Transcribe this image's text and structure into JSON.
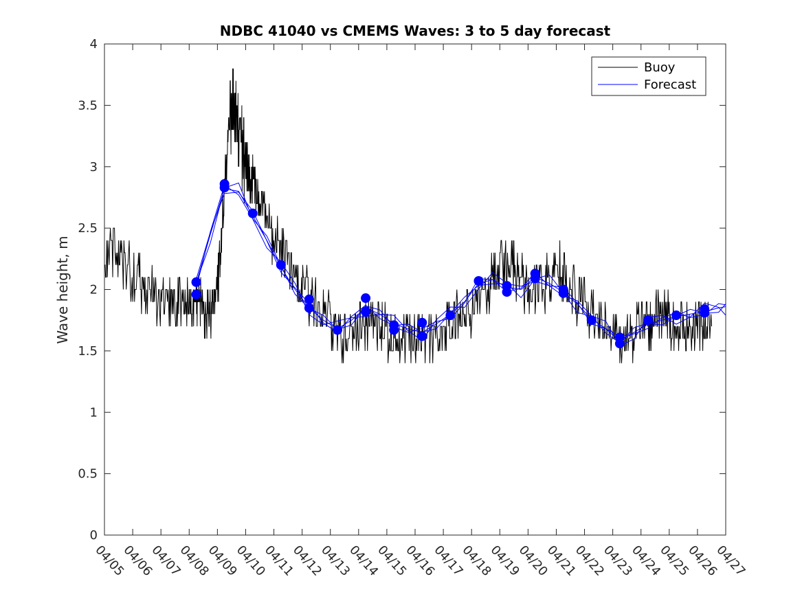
{
  "chart_data": {
    "type": "line",
    "title": "NDBC 41040 vs CMEMS Waves: 3 to 5 day forecast",
    "xlabel": "",
    "ylabel": "Wave height, m",
    "xlim": [
      "04/05",
      "04/27"
    ],
    "ylim": [
      0,
      4
    ],
    "x_tick_labels": [
      "04/05",
      "04/06",
      "04/07",
      "04/08",
      "04/09",
      "04/10",
      "04/11",
      "04/12",
      "04/13",
      "04/14",
      "04/15",
      "04/16",
      "04/17",
      "04/18",
      "04/19",
      "04/20",
      "04/21",
      "04/22",
      "04/23",
      "04/24",
      "04/25",
      "04/26",
      "04/27"
    ],
    "y_ticks": [
      0,
      0.5,
      1,
      1.5,
      2,
      2.5,
      3,
      3.5,
      4
    ],
    "y_tick_labels": [
      "0",
      "0.5",
      "1",
      "1.5",
      "2",
      "2.5",
      "3",
      "3.5",
      "4"
    ],
    "grid": false,
    "legend_position": "top-right",
    "series": [
      {
        "name": "Buoy",
        "color": "#000000",
        "style": "noisy-line",
        "x": [
          "04/05 00:00",
          "04/05 12:00",
          "04/06 00:00",
          "04/06 12:00",
          "04/07 00:00",
          "04/07 12:00",
          "04/08 00:00",
          "04/08 06:00",
          "04/08 12:00",
          "04/08 18:00",
          "04/09 00:00",
          "04/09 06:00",
          "04/09 12:00",
          "04/09 18:00",
          "04/10 00:00",
          "04/10 06:00",
          "04/10 12:00",
          "04/11 00:00",
          "04/11 12:00",
          "04/12 00:00",
          "04/12 12:00",
          "04/13 00:00",
          "04/13 12:00",
          "04/14 00:00",
          "04/14 12:00",
          "04/15 00:00",
          "04/15 12:00",
          "04/16 00:00",
          "04/16 12:00",
          "04/17 00:00",
          "04/17 12:00",
          "04/18 00:00",
          "04/18 12:00",
          "04/19 00:00",
          "04/19 12:00",
          "04/20 00:00",
          "04/20 12:00",
          "04/21 00:00",
          "04/21 12:00",
          "04/22 00:00",
          "04/22 12:00",
          "04/23 00:00",
          "04/23 12:00",
          "04/24 00:00",
          "04/24 12:00",
          "04/25 00:00",
          "04/25 12:00",
          "04/26 00:00",
          "04/26 12:00"
        ],
        "values": [
          2.25,
          2.3,
          2.1,
          2.0,
          1.9,
          1.85,
          1.85,
          1.95,
          1.85,
          1.8,
          2.0,
          2.8,
          3.5,
          3.3,
          3.0,
          2.9,
          2.7,
          2.4,
          2.2,
          2.0,
          1.85,
          1.75,
          1.6,
          1.65,
          1.75,
          1.65,
          1.6,
          1.55,
          1.55,
          1.6,
          1.8,
          1.85,
          2.0,
          2.15,
          2.15,
          2.0,
          2.0,
          2.2,
          2.0,
          1.85,
          1.7,
          1.6,
          1.6,
          1.7,
          1.75,
          1.75,
          1.7,
          1.7,
          1.7
        ]
      },
      {
        "name": "Forecast",
        "color": "#0000ff",
        "style": "line",
        "x": [
          "04/08 06:00",
          "04/08 18:00",
          "04/09 06:00",
          "04/09 18:00",
          "04/10 06:00",
          "04/10 18:00",
          "04/11 06:00",
          "04/11 18:00",
          "04/12 06:00",
          "04/12 18:00",
          "04/13 06:00",
          "04/13 18:00",
          "04/14 06:00",
          "04/14 18:00",
          "04/15 06:00",
          "04/15 18:00",
          "04/16 06:00",
          "04/16 18:00",
          "04/17 06:00",
          "04/17 18:00",
          "04/18 06:00",
          "04/18 18:00",
          "04/19 06:00",
          "04/19 18:00",
          "04/20 06:00",
          "04/20 18:00",
          "04/21 06:00",
          "04/21 18:00",
          "04/22 06:00",
          "04/22 18:00",
          "04/23 06:00",
          "04/23 18:00",
          "04/24 06:00",
          "04/24 18:00",
          "04/25 06:00",
          "04/25 18:00",
          "04/26 06:00",
          "04/26 18:00",
          "04/27 00:00"
        ],
        "values": [
          2.05,
          2.45,
          2.82,
          2.8,
          2.6,
          2.4,
          2.18,
          2.0,
          1.85,
          1.75,
          1.68,
          1.75,
          1.85,
          1.8,
          1.72,
          1.68,
          1.65,
          1.72,
          1.8,
          1.9,
          2.05,
          2.08,
          2.02,
          2.0,
          2.1,
          2.05,
          1.98,
          1.88,
          1.76,
          1.68,
          1.58,
          1.65,
          1.72,
          1.75,
          1.78,
          1.8,
          1.82,
          1.85,
          1.86
        ]
      },
      {
        "name": "",
        "color": "#0000ff",
        "style": "markers",
        "x": [
          "04/08 06:00",
          "04/08 06:00",
          "04/09 06:00",
          "04/09 06:00",
          "04/10 06:00",
          "04/11 06:00",
          "04/12 06:00",
          "04/12 06:00",
          "04/13 06:00",
          "04/14 06:00",
          "04/14 06:00",
          "04/15 06:00",
          "04/15 06:00",
          "04/16 06:00",
          "04/16 06:00",
          "04/17 06:00",
          "04/18 06:00",
          "04/19 06:00",
          "04/19 06:00",
          "04/20 06:00",
          "04/20 06:00",
          "04/21 06:00",
          "04/21 06:00",
          "04/22 06:00",
          "04/23 06:00",
          "04/23 06:00",
          "04/24 06:00",
          "04/25 06:00",
          "04/26 06:00",
          "04/26 06:00"
        ],
        "values": [
          2.06,
          1.96,
          2.86,
          2.83,
          2.62,
          2.2,
          1.92,
          1.85,
          1.67,
          1.93,
          1.82,
          1.71,
          1.67,
          1.73,
          1.62,
          1.79,
          2.07,
          2.03,
          1.98,
          2.13,
          2.09,
          2.0,
          1.97,
          1.75,
          1.61,
          1.56,
          1.75,
          1.79,
          1.84,
          1.81
        ]
      }
    ]
  }
}
